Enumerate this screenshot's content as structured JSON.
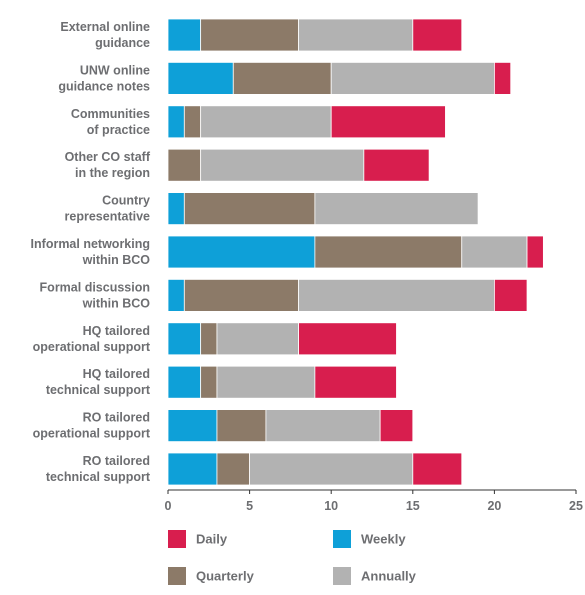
{
  "chart_data": {
    "type": "bar",
    "orientation": "horizontal",
    "stacked": true,
    "categories": [
      [
        "External online",
        "guidance"
      ],
      [
        "UNW online",
        "guidance notes"
      ],
      [
        "Communities",
        "of practice"
      ],
      [
        "Other CO staff",
        "in the region"
      ],
      [
        "Country",
        "representative"
      ],
      [
        "Informal networking",
        "within BCO"
      ],
      [
        "Formal discussion",
        "within BCO"
      ],
      [
        "HQ tailored",
        "operational support"
      ],
      [
        "HQ tailored",
        "technical support"
      ],
      [
        "RO tailored",
        "operational support"
      ],
      [
        "RO tailored",
        "technical support"
      ]
    ],
    "series": [
      {
        "name": "Weekly",
        "color": "#0ea0d8",
        "values": [
          2,
          4,
          1,
          0,
          1,
          9,
          1,
          2,
          2,
          3,
          3
        ]
      },
      {
        "name": "Quarterly",
        "color": "#8c7a68",
        "values": [
          6,
          6,
          1,
          2,
          8,
          9,
          7,
          1,
          1,
          3,
          2
        ]
      },
      {
        "name": "Annually",
        "color": "#b2b2b2",
        "values": [
          7,
          10,
          8,
          10,
          10,
          4,
          12,
          5,
          6,
          7,
          10
        ]
      },
      {
        "name": "Daily",
        "color": "#d81e4e",
        "values": [
          3,
          1,
          7,
          4,
          0,
          1,
          2,
          6,
          5,
          2,
          3
        ]
      }
    ],
    "xlim": [
      0,
      25
    ],
    "xticks": [
      0,
      5,
      10,
      15,
      20,
      25
    ],
    "grid": false,
    "legend": {
      "placement": "bottom",
      "order": [
        "Daily",
        "Weekly",
        "Quarterly",
        "Annually"
      ]
    }
  }
}
